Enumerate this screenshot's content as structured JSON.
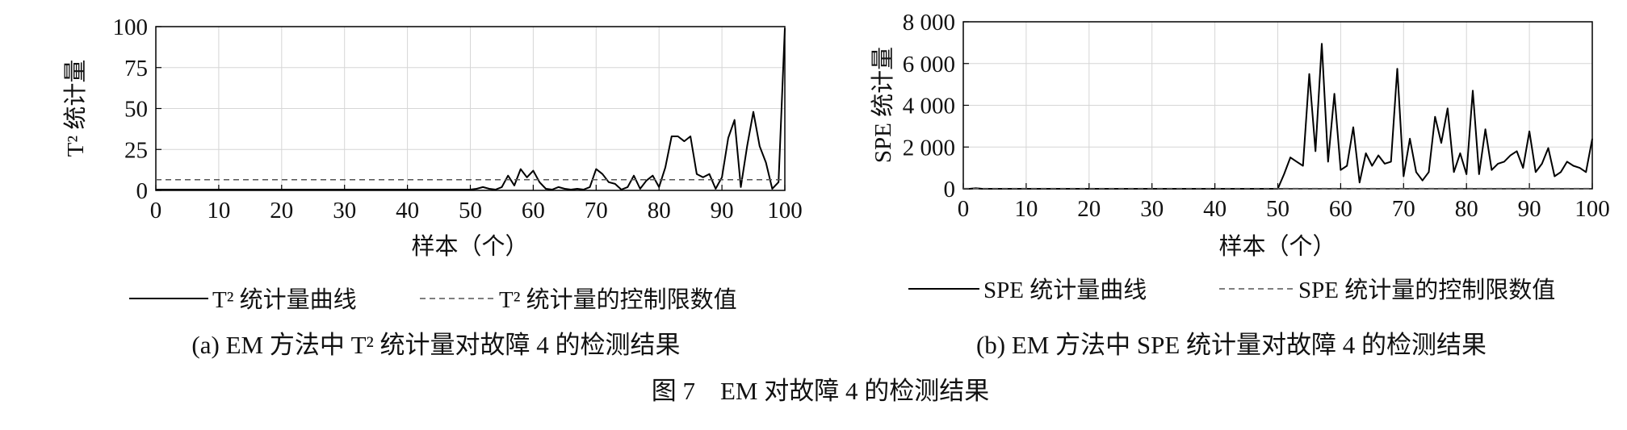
{
  "figure_caption": "图 7　EM 对故障 4 的检测结果",
  "chart_data": [
    {
      "type": "line",
      "panel_caption": "(a) EM 方法中 T² 统计量对故障 4 的检测结果",
      "xlabel": "样本（个）",
      "ylabel": "T² 统计量",
      "xlim": [
        0,
        100
      ],
      "ylim": [
        0,
        100
      ],
      "xticks": [
        "0",
        "10",
        "20",
        "30",
        "40",
        "50",
        "60",
        "70",
        "80",
        "90",
        "100"
      ],
      "yticks": [
        "0",
        "25",
        "50",
        "75",
        "100"
      ],
      "xtick_values": [
        0,
        10,
        20,
        30,
        40,
        50,
        60,
        70,
        80,
        90,
        100
      ],
      "ytick_values": [
        0,
        25,
        50,
        75,
        100
      ],
      "grid": true,
      "legend_position": "bottom",
      "series": [
        {
          "name": "T² 统计量曲线",
          "style": "solid",
          "color": "#000000",
          "x": [
            0,
            5,
            10,
            15,
            20,
            25,
            30,
            35,
            40,
            45,
            50,
            51,
            52,
            53,
            54,
            55,
            56,
            57,
            58,
            59,
            60,
            61,
            62,
            63,
            64,
            65,
            66,
            67,
            68,
            69,
            70,
            71,
            72,
            73,
            74,
            75,
            76,
            77,
            78,
            79,
            80,
            81,
            82,
            83,
            84,
            85,
            86,
            87,
            88,
            89,
            90,
            91,
            92,
            93,
            94,
            95,
            96,
            97,
            98,
            99,
            100
          ],
          "y": [
            0.5,
            0.5,
            0.5,
            0.5,
            0.5,
            0.5,
            0.5,
            0.5,
            0.5,
            0.5,
            0.5,
            1,
            2,
            1,
            0.5,
            2,
            9,
            3,
            13,
            8,
            12,
            5,
            1,
            0.5,
            2,
            1,
            0.5,
            1,
            0.5,
            2,
            13,
            10,
            5,
            4,
            0.5,
            2,
            9,
            1,
            6,
            9,
            2,
            14,
            33,
            33,
            30,
            33,
            10,
            8,
            10,
            1,
            8,
            32,
            43,
            2,
            27,
            48,
            27,
            17,
            1,
            5,
            99
          ]
        },
        {
          "name": "T² 统计量的控制限数值",
          "style": "dashed",
          "color": "#555555",
          "x": [
            0,
            100
          ],
          "y": [
            6.5,
            6.5
          ]
        }
      ]
    },
    {
      "type": "line",
      "panel_caption": "(b) EM 方法中 SPE 统计量对故障 4 的检测结果",
      "xlabel": "样本（个）",
      "ylabel": "SPE 统计量",
      "xlim": [
        0,
        100
      ],
      "ylim": [
        0,
        8000
      ],
      "xticks": [
        "0",
        "10",
        "20",
        "30",
        "40",
        "50",
        "60",
        "70",
        "80",
        "90",
        "100"
      ],
      "yticks": [
        "0",
        "2 000",
        "4 000",
        "6 000",
        "8 000"
      ],
      "xtick_values": [
        0,
        10,
        20,
        30,
        40,
        50,
        60,
        70,
        80,
        90,
        100
      ],
      "ytick_values": [
        0,
        2000,
        4000,
        6000,
        8000
      ],
      "grid": true,
      "legend_position": "bottom",
      "series": [
        {
          "name": "SPE 统计量曲线",
          "style": "solid",
          "color": "#000000",
          "x": [
            0,
            1,
            2,
            3,
            4,
            10,
            20,
            30,
            40,
            49,
            50,
            51,
            52,
            53,
            54,
            55,
            56,
            57,
            58,
            59,
            60,
            61,
            62,
            63,
            64,
            65,
            66,
            67,
            68,
            69,
            70,
            71,
            72,
            73,
            74,
            75,
            76,
            77,
            78,
            79,
            80,
            81,
            82,
            83,
            84,
            85,
            86,
            87,
            88,
            89,
            90,
            91,
            92,
            93,
            94,
            95,
            96,
            97,
            98,
            99,
            100
          ],
          "y": [
            0,
            0,
            30,
            0,
            0,
            0,
            0,
            0,
            0,
            0,
            0,
            700,
            1500,
            1300,
            1100,
            5500,
            1800,
            6950,
            1300,
            4550,
            900,
            1100,
            2950,
            300,
            1700,
            1100,
            1600,
            1200,
            1300,
            5750,
            600,
            2400,
            800,
            400,
            800,
            3450,
            2200,
            3850,
            800,
            1700,
            700,
            4700,
            700,
            2850,
            900,
            1200,
            1300,
            1600,
            1800,
            1000,
            2750,
            800,
            1200,
            1950,
            600,
            800,
            1300,
            1100,
            1000,
            800,
            2400
          ]
        },
        {
          "name": "SPE 统计量的控制限数值",
          "style": "dashed",
          "color": "#555555",
          "x": [
            0,
            100
          ],
          "y": [
            15,
            15
          ]
        }
      ]
    }
  ]
}
